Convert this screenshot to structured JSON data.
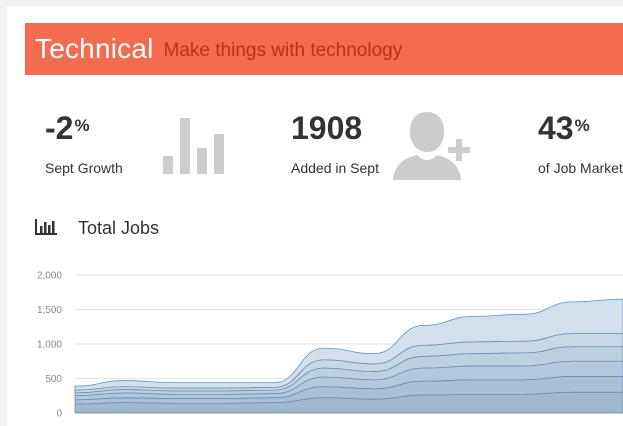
{
  "header": {
    "title": "Technical",
    "subtitle": "Make things with technology",
    "bg_color": "#f26c4f",
    "subtitle_color": "#b8321a"
  },
  "stats": [
    {
      "value": "-2",
      "unit": "%",
      "label": "Sept Growth",
      "icon": "bar-chart-icon"
    },
    {
      "value": "1908",
      "unit": "",
      "label": "Added in Sept",
      "icon": "add-user-icon"
    },
    {
      "value": "43",
      "unit": "%",
      "label": "of Job Market",
      "icon": ""
    }
  ],
  "section": {
    "title": "Total Jobs",
    "icon": "bar-chart-icon"
  },
  "chart_data": {
    "type": "area",
    "stacked": true,
    "ylim": [
      0,
      2000
    ],
    "yticks": [
      "0",
      "500",
      "1,000",
      "1,500",
      "2,000"
    ],
    "grid": true,
    "colors": [
      "#9fb8d0",
      "#a9c0d6",
      "#b3c8dc",
      "#bdd0e2",
      "#c7d8e7",
      "#d1e0ec"
    ],
    "x_count": 12,
    "series": [
      {
        "values": [
          130,
          150,
          140,
          140,
          150,
          220,
          200,
          260,
          270,
          270,
          300,
          300
        ]
      },
      {
        "values": [
          60,
          70,
          70,
          70,
          70,
          160,
          150,
          200,
          210,
          210,
          230,
          230
        ]
      },
      {
        "values": [
          60,
          70,
          60,
          60,
          60,
          140,
          130,
          190,
          200,
          200,
          220,
          220
        ]
      },
      {
        "values": [
          40,
          50,
          50,
          50,
          50,
          130,
          120,
          170,
          180,
          190,
          210,
          210
        ]
      },
      {
        "values": [
          40,
          40,
          40,
          40,
          40,
          120,
          110,
          160,
          170,
          170,
          190,
          190
        ]
      },
      {
        "values": [
          60,
          90,
          80,
          80,
          70,
          170,
          150,
          290,
          370,
          390,
          460,
          500
        ]
      }
    ]
  }
}
